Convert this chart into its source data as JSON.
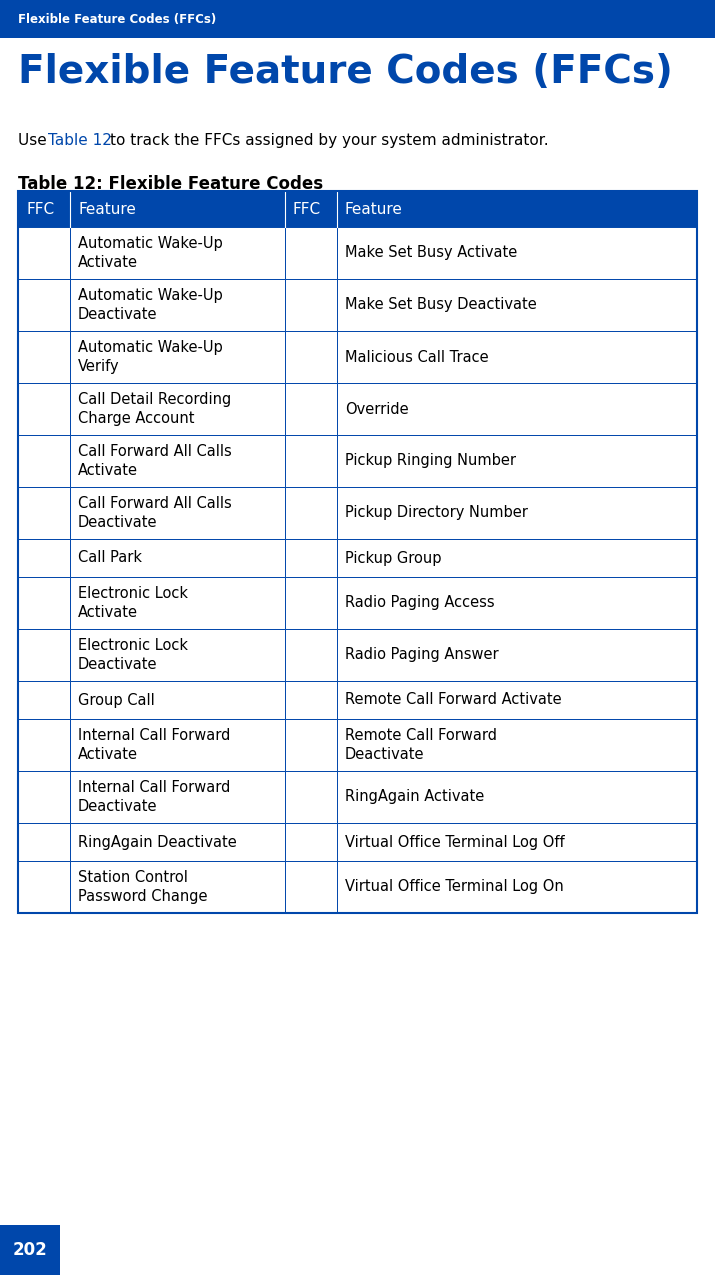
{
  "page_bg": "#ffffff",
  "header_bg": "#0047AB",
  "header_text": "Flexible Feature Codes (FFCs)",
  "header_text_color": "#ffffff",
  "title_text": "Flexible Feature Codes (FFCs)",
  "title_color": "#0047AB",
  "body_text_color": "#000000",
  "body_link_color": "#0047AB",
  "table_title": "Table 12: Flexible Feature Codes",
  "table_title_color": "#000000",
  "table_header_bg": "#0047AB",
  "table_header_text_color": "#ffffff",
  "table_border_color": "#0047AB",
  "col_headers": [
    "FFC",
    "Feature",
    "FFC",
    "Feature"
  ],
  "rows": [
    [
      "",
      "Automatic Wake-Up\nActivate",
      "",
      "Make Set Busy Activate"
    ],
    [
      "",
      "Automatic Wake-Up\nDeactivate",
      "",
      "Make Set Busy Deactivate"
    ],
    [
      "",
      "Automatic Wake-Up\nVerify",
      "",
      "Malicious Call Trace"
    ],
    [
      "",
      "Call Detail Recording\nCharge Account",
      "",
      "Override"
    ],
    [
      "",
      "Call Forward All Calls\nActivate",
      "",
      "Pickup Ringing Number"
    ],
    [
      "",
      "Call Forward All Calls\nDeactivate",
      "",
      "Pickup Directory Number"
    ],
    [
      "",
      "Call Park",
      "",
      "Pickup Group"
    ],
    [
      "",
      "Electronic Lock\nActivate",
      "",
      "Radio Paging Access"
    ],
    [
      "",
      "Electronic Lock\nDeactivate",
      "",
      "Radio Paging Answer"
    ],
    [
      "",
      "Group Call",
      "",
      "Remote Call Forward Activate"
    ],
    [
      "",
      "Internal Call Forward\nActivate",
      "",
      "Remote Call Forward\nDeactivate"
    ],
    [
      "",
      "Internal Call Forward\nDeactivate",
      "",
      "RingAgain Activate"
    ],
    [
      "",
      "RingAgain Deactivate",
      "",
      "Virtual Office Terminal Log Off"
    ],
    [
      "",
      "Station Control\nPassword Change",
      "",
      "Virtual Office Terminal Log On"
    ]
  ],
  "footer_bg": "#0047AB",
  "footer_text": "202",
  "footer_text_color": "#ffffff",
  "fig_width": 7.15,
  "fig_height": 12.75,
  "dpi": 100
}
